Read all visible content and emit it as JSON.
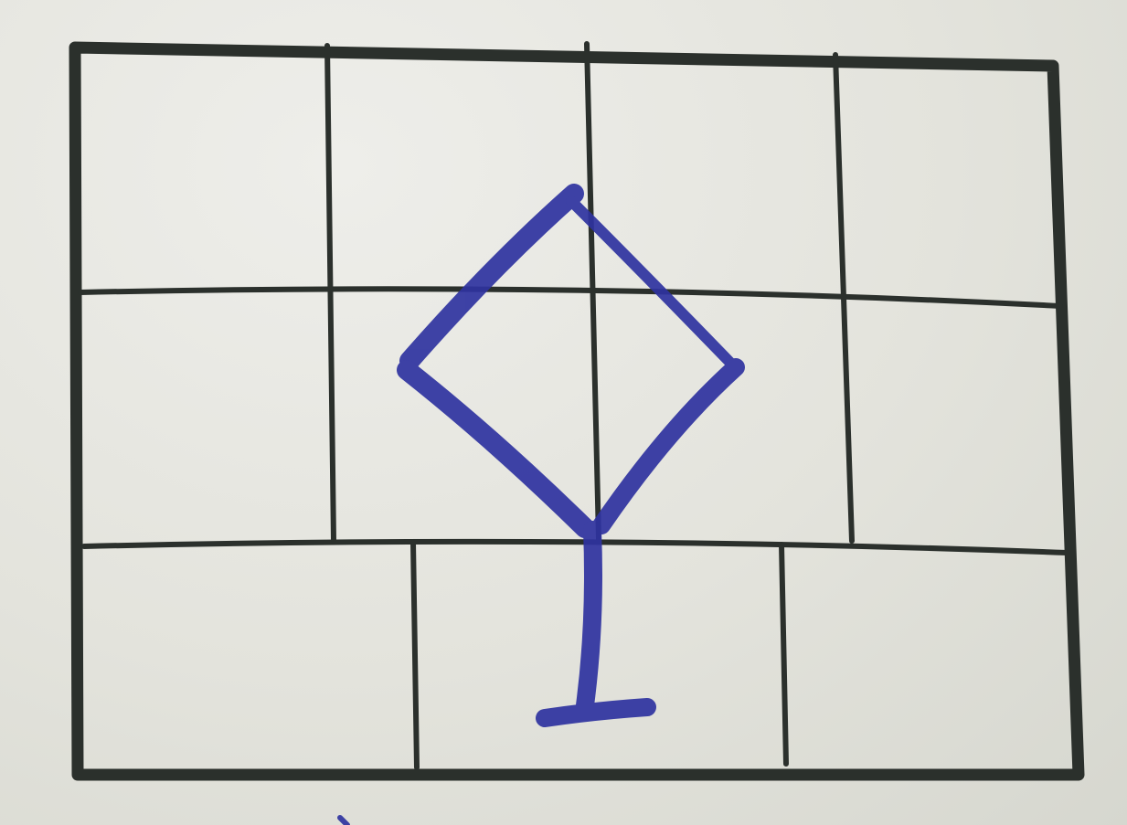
{
  "scene": {
    "subject": "hand-drawn-diamond-on-grid",
    "paper_color": "#e4e4dd",
    "grid_color": "#2b302c",
    "ink_color": "#2f33a0",
    "grid": {
      "rows": 3,
      "top_rows_columns": 4,
      "bottom_row_columns": 3
    }
  }
}
